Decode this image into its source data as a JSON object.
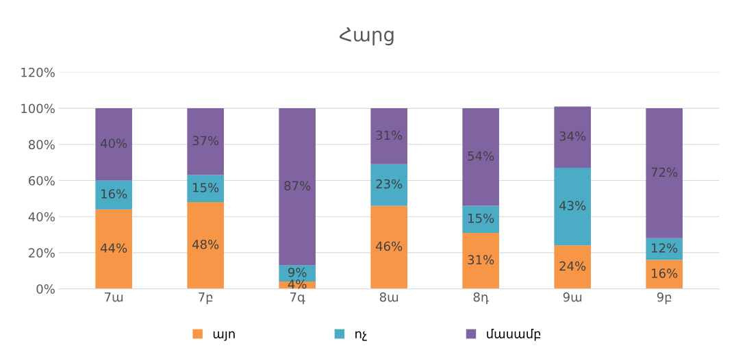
{
  "chart_data": {
    "type": "bar",
    "title": "Հարց",
    "stacked": true,
    "categories": [
      "7ա",
      "7բ",
      "7գ",
      "8ա",
      "8դ",
      "9ա",
      "9բ"
    ],
    "series": [
      {
        "name": "այո",
        "color": "#f79646",
        "values": [
          44,
          48,
          4,
          46,
          31,
          24,
          16
        ],
        "value_labels": [
          "44%",
          "48%",
          "4%",
          "46%",
          "31%",
          "24%",
          "16%"
        ]
      },
      {
        "name": "ոչ",
        "color": "#4bacc6",
        "values": [
          16,
          15,
          9,
          23,
          15,
          43,
          12
        ],
        "value_labels": [
          "16%",
          "15%",
          "9%",
          "23%",
          "15%",
          "43%",
          "12%"
        ]
      },
      {
        "name": "մասամբ",
        "color": "#8064a2",
        "values": [
          40,
          37,
          87,
          31,
          54,
          34,
          72
        ],
        "value_labels": [
          "40%",
          "37%",
          "87%",
          "31%",
          "54%",
          "34%",
          "72%"
        ]
      }
    ],
    "ylim": [
      0,
      120
    ],
    "yticks": [
      {
        "value": 0,
        "label": "0%"
      },
      {
        "value": 20,
        "label": "20%"
      },
      {
        "value": 40,
        "label": "40%"
      },
      {
        "value": 60,
        "label": "60%"
      },
      {
        "value": 80,
        "label": "80%"
      },
      {
        "value": 100,
        "label": "100%"
      },
      {
        "value": 120,
        "label": "120%"
      }
    ],
    "grid": "y",
    "legend": "bottom"
  }
}
